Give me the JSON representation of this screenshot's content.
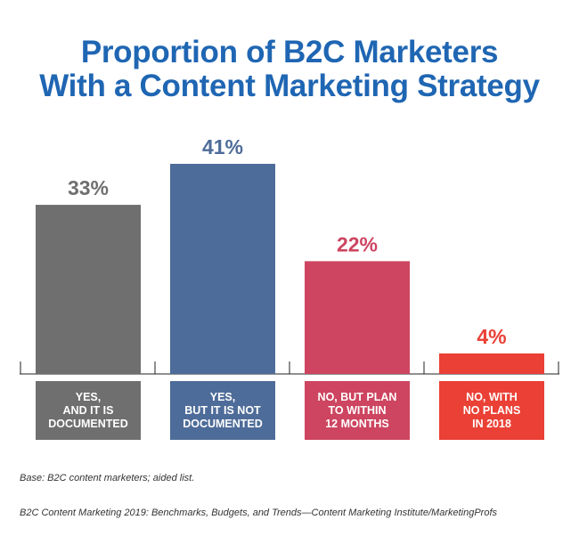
{
  "title": {
    "line1": "Proportion of B2C Marketers",
    "line2": "With a Content Marketing Strategy"
  },
  "chart_data": {
    "type": "bar",
    "title": "Proportion of B2C Marketers With a Content Marketing Strategy",
    "categories": [
      [
        "YES,",
        "AND IT IS",
        "DOCUMENTED"
      ],
      [
        "YES,",
        "BUT IT IS NOT",
        "DOCUMENTED"
      ],
      [
        "NO, BUT PLAN",
        "TO WITHIN",
        "12 MONTHS"
      ],
      [
        "NO, WITH",
        "NO PLANS",
        "IN 2018"
      ]
    ],
    "values": [
      33,
      41,
      22,
      4
    ],
    "value_labels": [
      "33%",
      "41%",
      "22%",
      "4%"
    ],
    "colors": [
      "#6f6f6f",
      "#4e6c99",
      "#cd4560",
      "#ea4035"
    ],
    "label_colors": [
      "#6f6f6f",
      "#4e6c99",
      "#cd4560",
      "#ea4035"
    ],
    "ylim": [
      0,
      41
    ],
    "grid": false,
    "legend": "none"
  },
  "footnotes": {
    "base": "Base: B2C content marketers; aided list.",
    "source": "B2C Content Marketing 2019: Benchmarks, Budgets, and Trends—Content Marketing Institute/MarketingProfs"
  }
}
